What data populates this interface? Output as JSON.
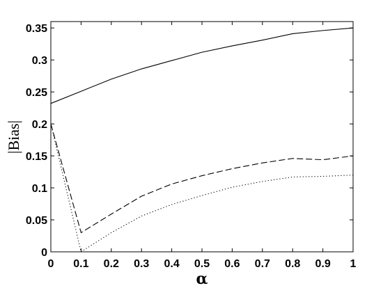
{
  "chart_data": {
    "type": "line",
    "title": "",
    "xlabel": "α",
    "ylabel": "|Bias|",
    "xlim": [
      0,
      1
    ],
    "ylim": [
      0,
      0.36
    ],
    "grid": false,
    "x_ticks": [
      "0",
      "0.1",
      "0.2",
      "0.3",
      "0.4",
      "0.5",
      "0.6",
      "0.7",
      "0.8",
      "0.9",
      "1"
    ],
    "y_ticks": [
      "0",
      "0.05",
      "0.1",
      "0.15",
      "0.2",
      "0.25",
      "0.3",
      "0.35"
    ],
    "x": [
      0,
      0.1,
      0.2,
      0.3,
      0.4,
      0.5,
      0.6,
      0.7,
      0.8,
      0.9,
      1.0
    ],
    "series": [
      {
        "style": "solid",
        "values": [
          0.232,
          0.251,
          0.27,
          0.286,
          0.299,
          0.312,
          0.322,
          0.331,
          0.341,
          0.346,
          0.35
        ]
      },
      {
        "style": "dashed",
        "values": [
          0.2,
          0.03,
          0.059,
          0.087,
          0.106,
          0.119,
          0.13,
          0.139,
          0.146,
          0.144,
          0.15
        ]
      },
      {
        "style": "dotted",
        "values": [
          0.2,
          0.0,
          0.03,
          0.056,
          0.074,
          0.088,
          0.101,
          0.11,
          0.117,
          0.118,
          0.12
        ]
      }
    ]
  }
}
